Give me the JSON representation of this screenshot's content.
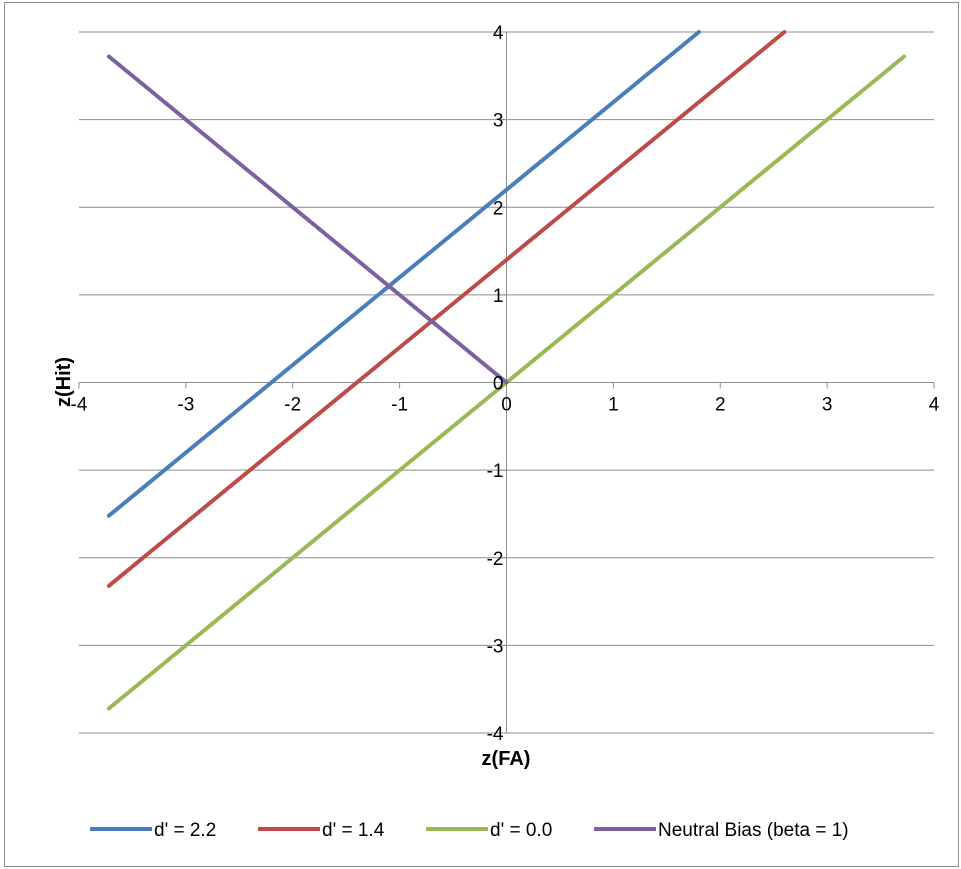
{
  "chart_data": {
    "type": "line",
    "title": "",
    "xlabel": "z(FA)",
    "ylabel": "z(Hit)",
    "xlim": [
      -4,
      4
    ],
    "ylim": [
      -4,
      4
    ],
    "xticks": [
      -4,
      -3,
      -2,
      -1,
      0,
      1,
      2,
      3,
      4
    ],
    "yticks": [
      -4,
      -3,
      -2,
      -1,
      0,
      1,
      2,
      3,
      4
    ],
    "grid": "horizontal",
    "legend_position": "bottom",
    "series": [
      {
        "name": "d' = 2.2",
        "color": "#4a7ebb",
        "x": [
          -3.72,
          1.8
        ],
        "y": [
          -1.52,
          4.0
        ]
      },
      {
        "name": "d' = 1.4",
        "color": "#be4b48",
        "x": [
          -3.72,
          2.6
        ],
        "y": [
          -2.32,
          4.0
        ]
      },
      {
        "name": "d' = 0.0",
        "color": "#98b954",
        "x": [
          -3.72,
          3.72
        ],
        "y": [
          -3.72,
          3.72
        ]
      },
      {
        "name": "Neutral Bias (beta = 1)",
        "color": "#7d60a0",
        "x": [
          -3.72,
          0
        ],
        "y": [
          3.72,
          0
        ]
      }
    ]
  }
}
